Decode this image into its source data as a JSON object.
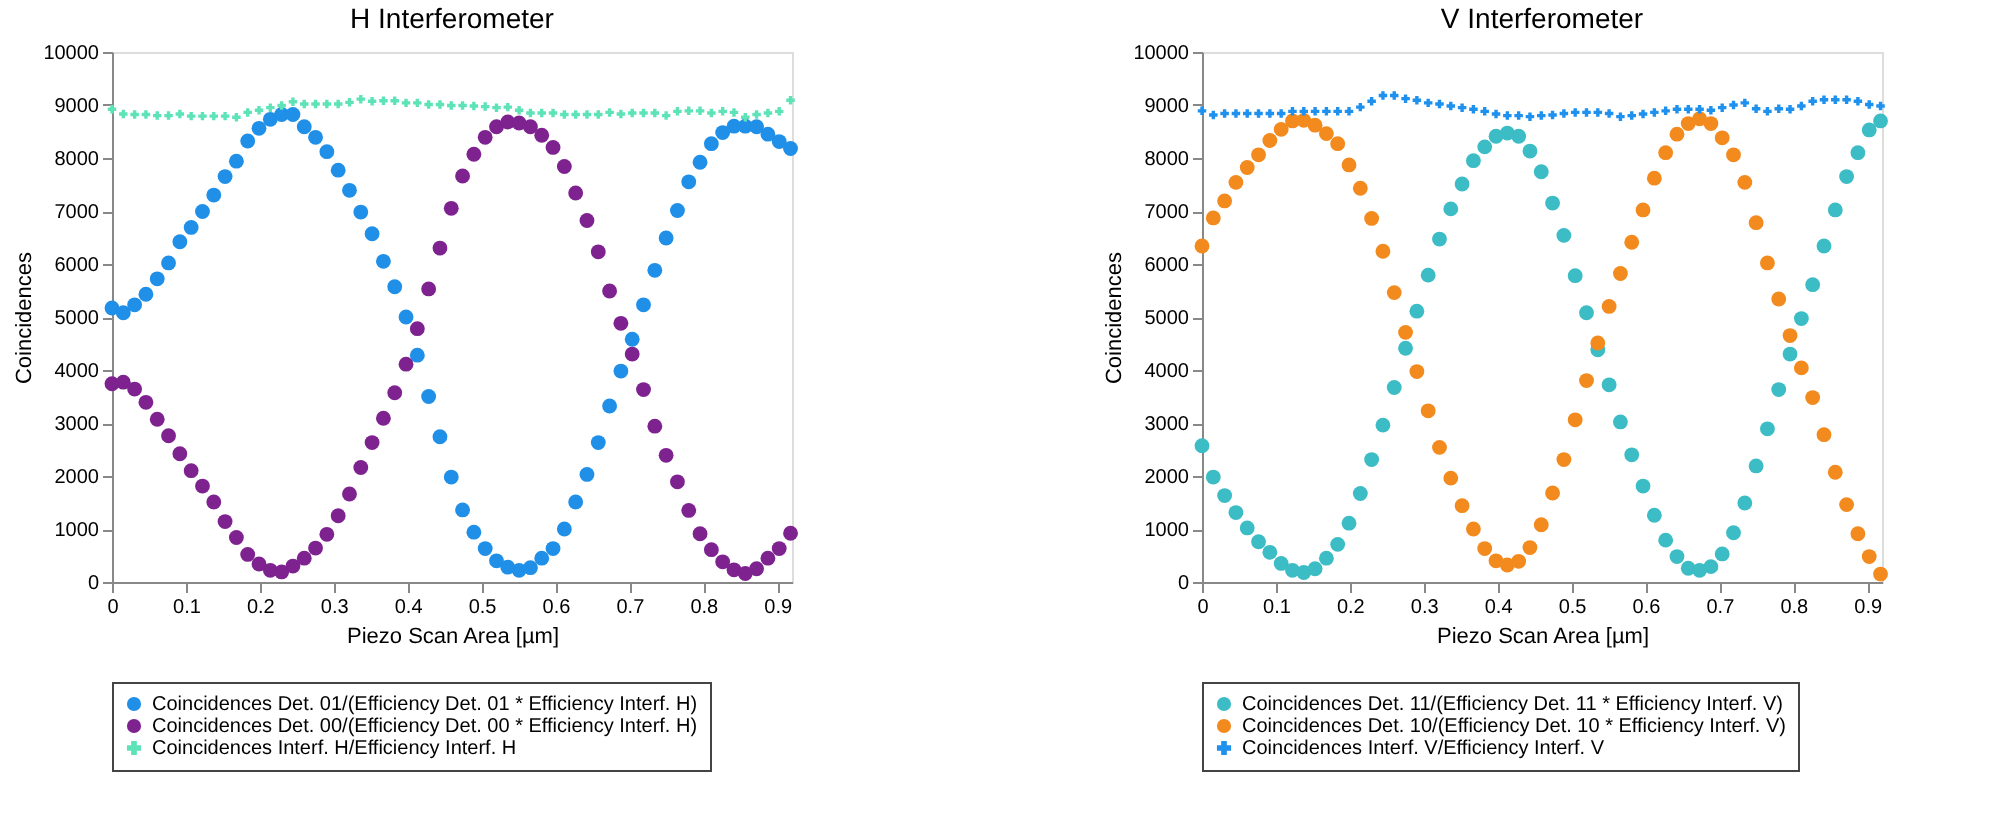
{
  "chart_data": [
    {
      "type": "scatter",
      "title": "H Interferometer",
      "xlabel": "Piezo Scan Area [µm]",
      "ylabel": "Coincidences",
      "xlim": [
        0,
        0.92
      ],
      "ylim": [
        0,
        10000
      ],
      "xticks": [
        0,
        0.1,
        0.2,
        0.3,
        0.4,
        0.5,
        0.6,
        0.7,
        0.8,
        0.9
      ],
      "yticks": [
        0,
        1000,
        2000,
        3000,
        4000,
        5000,
        6000,
        7000,
        8000,
        9000,
        10000
      ],
      "grid": false,
      "legend": "bottom",
      "x": [
        0,
        0.0153,
        0.0306,
        0.0459,
        0.0612,
        0.0765,
        0.0918,
        0.1071,
        0.1224,
        0.1377,
        0.153,
        0.1683,
        0.1836,
        0.1989,
        0.2142,
        0.2295,
        0.2448,
        0.2601,
        0.2754,
        0.2907,
        0.306,
        0.3213,
        0.3366,
        0.3519,
        0.3672,
        0.3825,
        0.3978,
        0.4131,
        0.4284,
        0.4437,
        0.459,
        0.4743,
        0.4896,
        0.5049,
        0.5202,
        0.5355,
        0.5508,
        0.5661,
        0.5814,
        0.5967,
        0.612,
        0.6273,
        0.6426,
        0.6579,
        0.6732,
        0.6885,
        0.7038,
        0.7191,
        0.7344,
        0.7497,
        0.765,
        0.7803,
        0.7956,
        0.8109,
        0.8262,
        0.8415,
        0.8568,
        0.8721,
        0.8874,
        0.9027,
        0.918
      ],
      "series": [
        {
          "name": "Coincidences Det. 01/(Efficiency Det. 01 * Efficiency Interf. H)",
          "color": "#1f8fe8",
          "marker": "circle",
          "values": [
            5170,
            5080,
            5230,
            5430,
            5720,
            6020,
            6420,
            6690,
            6990,
            7300,
            7650,
            7940,
            8320,
            8560,
            8730,
            8820,
            8820,
            8590,
            8390,
            8120,
            7770,
            7390,
            6980,
            6570,
            6050,
            5570,
            5000,
            4280,
            3500,
            2740,
            1980,
            1360,
            940,
            630,
            400,
            280,
            220,
            270,
            450,
            630,
            1000,
            1510,
            2030,
            2630,
            3320,
            3980,
            4580,
            5230,
            5880,
            6490,
            7010,
            7550,
            7920,
            8270,
            8480,
            8600,
            8600,
            8590,
            8450,
            8310,
            8180
          ]
        },
        {
          "name": "Coincidences Det. 00/(Efficiency Det. 00 * Efficiency Interf. H)",
          "color": "#7e2290",
          "marker": "circle",
          "values": [
            3740,
            3770,
            3640,
            3390,
            3070,
            2760,
            2420,
            2100,
            1810,
            1510,
            1140,
            840,
            520,
            340,
            220,
            190,
            300,
            450,
            640,
            900,
            1250,
            1660,
            2160,
            2630,
            3090,
            3570,
            4110,
            4780,
            5530,
            6300,
            7050,
            7660,
            8070,
            8390,
            8590,
            8680,
            8660,
            8590,
            8430,
            8200,
            7840,
            7340,
            6820,
            6230,
            5490,
            4880,
            4300,
            3630,
            2940,
            2390,
            1890,
            1350,
            910,
            610,
            380,
            230,
            160,
            250,
            450,
            630,
            920
          ]
        },
        {
          "name": "Coincidences Interf. H/Efficiency Interf. H",
          "color": "#5ee3b8",
          "marker": "cross",
          "values": [
            8920,
            8830,
            8820,
            8820,
            8800,
            8800,
            8830,
            8790,
            8790,
            8790,
            8790,
            8770,
            8860,
            8900,
            8950,
            8990,
            9060,
            9020,
            9020,
            9020,
            9020,
            9050,
            9110,
            9070,
            9080,
            9080,
            9040,
            9040,
            9010,
            9010,
            8990,
            8990,
            8980,
            8970,
            8950,
            8960,
            8900,
            8850,
            8850,
            8850,
            8820,
            8820,
            8820,
            8820,
            8860,
            8830,
            8850,
            8850,
            8850,
            8800,
            8880,
            8890,
            8890,
            8850,
            8880,
            8860,
            8770,
            8820,
            8850,
            8880,
            9090
          ]
        }
      ]
    },
    {
      "type": "scatter",
      "title": "V Interferometer",
      "xlabel": "Piezo Scan Area [µm]",
      "ylabel": "Coincidences",
      "xlim": [
        0,
        0.92
      ],
      "ylim": [
        0,
        10000
      ],
      "xticks": [
        0,
        0.1,
        0.2,
        0.3,
        0.4,
        0.5,
        0.6,
        0.7,
        0.8,
        0.9
      ],
      "yticks": [
        0,
        1000,
        2000,
        3000,
        4000,
        5000,
        6000,
        7000,
        8000,
        9000,
        10000
      ],
      "grid": false,
      "legend": "bottom",
      "x": [
        0,
        0.0153,
        0.0306,
        0.0459,
        0.0612,
        0.0765,
        0.0918,
        0.1071,
        0.1224,
        0.1377,
        0.153,
        0.1683,
        0.1836,
        0.1989,
        0.2142,
        0.2295,
        0.2448,
        0.2601,
        0.2754,
        0.2907,
        0.306,
        0.3213,
        0.3366,
        0.3519,
        0.3672,
        0.3825,
        0.3978,
        0.4131,
        0.4284,
        0.4437,
        0.459,
        0.4743,
        0.4896,
        0.5049,
        0.5202,
        0.5355,
        0.5508,
        0.5661,
        0.5814,
        0.5967,
        0.612,
        0.6273,
        0.6426,
        0.6579,
        0.6732,
        0.6885,
        0.7038,
        0.7191,
        0.7344,
        0.7497,
        0.765,
        0.7803,
        0.7956,
        0.8109,
        0.8262,
        0.8415,
        0.8568,
        0.8721,
        0.8874,
        0.9027,
        0.918
      ],
      "series": [
        {
          "name": "Coincidences Det. 11/(Efficiency Det. 11 * Efficiency Interf. V)",
          "color": "#3cbcc4",
          "marker": "circle",
          "values": [
            2570,
            1980,
            1630,
            1310,
            1020,
            760,
            560,
            350,
            220,
            180,
            250,
            450,
            710,
            1110,
            1670,
            2310,
            2960,
            3670,
            4410,
            5110,
            5790,
            6470,
            7040,
            7510,
            7950,
            8210,
            8410,
            8470,
            8410,
            8130,
            7740,
            7150,
            6540,
            5780,
            5080,
            4380,
            3720,
            3020,
            2400,
            1810,
            1260,
            790,
            480,
            260,
            220,
            290,
            530,
            930,
            1490,
            2190,
            2890,
            3630,
            4300,
            4970,
            5610,
            6340,
            7020,
            7650,
            8100,
            8530,
            8700
          ]
        },
        {
          "name": "Coincidences Det. 10/(Efficiency Det. 10 * Efficiency Interf. V)",
          "color": "#f28a1e",
          "marker": "circle",
          "values": [
            6340,
            6870,
            7190,
            7540,
            7820,
            8060,
            8330,
            8540,
            8700,
            8710,
            8620,
            8460,
            8270,
            7870,
            7430,
            6860,
            6240,
            5460,
            4710,
            3970,
            3230,
            2540,
            1960,
            1440,
            1000,
            630,
            400,
            320,
            390,
            650,
            1080,
            1680,
            2310,
            3060,
            3800,
            4510,
            5200,
            5820,
            6410,
            7020,
            7620,
            8100,
            8450,
            8650,
            8740,
            8650,
            8380,
            8060,
            7540,
            6780,
            6020,
            5340,
            4650,
            4040,
            3480,
            2780,
            2070,
            1460,
            910,
            480,
            150
          ]
        },
        {
          "name": "Coincidences Interf. V/Efficiency Interf. V",
          "color": "#1e90ee",
          "marker": "cross",
          "values": [
            8890,
            8810,
            8840,
            8840,
            8840,
            8840,
            8840,
            8840,
            8880,
            8880,
            8880,
            8880,
            8880,
            8880,
            8960,
            9070,
            9180,
            9180,
            9120,
            9090,
            9040,
            9020,
            8980,
            8950,
            8920,
            8880,
            8830,
            8800,
            8800,
            8780,
            8800,
            8810,
            8840,
            8860,
            8860,
            8860,
            8840,
            8780,
            8800,
            8830,
            8860,
            8890,
            8920,
            8920,
            8920,
            8900,
            8950,
            9000,
            9040,
            8930,
            8880,
            8930,
            8920,
            8980,
            9070,
            9100,
            9100,
            9100,
            9070,
            9010,
            8980
          ]
        }
      ]
    }
  ]
}
